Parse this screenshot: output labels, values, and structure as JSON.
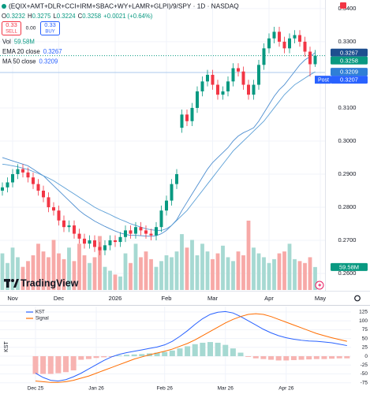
{
  "header": {
    "title": "(EQIX+AMT+DLR+CCI+IRM+SBAC+WY+LAMR+GLPI)/9/SPY · 1D · NASDAQ",
    "open_label": "O",
    "high_label": "H",
    "low_label": "L",
    "close_label": "C",
    "change": "+0.0021",
    "change_percent": "(+0.64%)",
    "sell_price": "0.33",
    "sell": "SELL",
    "spread": "0.00",
    "buy_price": "0.33",
    "buy": "BUY",
    "logo": "TradingView"
  },
  "chart_data": [
    {
      "type": "candlestick",
      "ylim": [
        0.255,
        0.3426
      ],
      "yticks": [
        {
          "value": 0.34,
          "label": "0.3400"
        },
        {
          "value": 0.33,
          "label": "0.3300"
        },
        {
          "value": 0.31,
          "label": "0.3100"
        },
        {
          "value": 0.3,
          "label": "0.3000"
        },
        {
          "value": 0.29,
          "label": "0.2900"
        },
        {
          "value": 0.28,
          "label": "0.2800"
        },
        {
          "value": 0.27,
          "label": "0.2700"
        },
        {
          "value": 0.26,
          "label": "0.2600"
        }
      ],
      "xticks": [
        {
          "value": 2,
          "label": "Nov"
        },
        {
          "value": 11,
          "label": "Dec"
        },
        {
          "value": 22,
          "label": "2026"
        },
        {
          "value": 32,
          "label": "Feb"
        },
        {
          "value": 41,
          "label": "Mar"
        },
        {
          "value": 52,
          "label": "Apr"
        },
        {
          "value": 62,
          "label": "May"
        }
      ],
      "grid": true,
      "up_color": "#089981",
      "down_color": "#f23645",
      "open": [
        0.285,
        0.286,
        0.2875,
        0.29,
        0.2915,
        0.2905,
        0.289,
        0.287,
        0.285,
        0.283,
        0.28,
        0.279,
        0.276,
        0.274,
        0.2745,
        0.272,
        0.2705,
        0.269,
        0.27,
        0.268,
        0.267,
        0.2685,
        0.27,
        0.2695,
        0.271,
        0.273,
        0.272,
        0.274,
        0.273,
        0.272,
        0.2715,
        0.274,
        0.279,
        0.282,
        0.287,
        0.304,
        0.308,
        0.306,
        0.31,
        0.315,
        0.318,
        0.32,
        0.317,
        0.314,
        0.315,
        0.318,
        0.322,
        0.321,
        0.317,
        0.314,
        0.317,
        0.323,
        0.328,
        0.331,
        0.333,
        0.33,
        0.328,
        0.331,
        0.332,
        0.33,
        0.327,
        0.3232
      ],
      "high": [
        0.2875,
        0.289,
        0.2915,
        0.293,
        0.293,
        0.292,
        0.2905,
        0.2885,
        0.2865,
        0.2845,
        0.2815,
        0.2805,
        0.2775,
        0.276,
        0.276,
        0.2735,
        0.272,
        0.2715,
        0.2715,
        0.2695,
        0.27,
        0.2715,
        0.2715,
        0.2725,
        0.2745,
        0.2745,
        0.2755,
        0.2755,
        0.2745,
        0.2735,
        0.2755,
        0.2805,
        0.2835,
        0.2885,
        0.2915,
        0.3095,
        0.3095,
        0.3115,
        0.3165,
        0.3195,
        0.3215,
        0.3215,
        0.3185,
        0.3165,
        0.3195,
        0.3235,
        0.3235,
        0.3225,
        0.3185,
        0.3185,
        0.3245,
        0.3295,
        0.3325,
        0.3345,
        0.3345,
        0.3315,
        0.3325,
        0.3335,
        0.3335,
        0.3315,
        0.3285,
        0.3275
      ],
      "low": [
        0.2835,
        0.2845,
        0.286,
        0.2885,
        0.289,
        0.2875,
        0.2855,
        0.2835,
        0.2815,
        0.2785,
        0.2775,
        0.2745,
        0.2725,
        0.2725,
        0.2705,
        0.269,
        0.2675,
        0.2675,
        0.2665,
        0.2655,
        0.2655,
        0.267,
        0.268,
        0.268,
        0.2695,
        0.2705,
        0.2705,
        0.2715,
        0.2705,
        0.27,
        0.27,
        0.2725,
        0.2775,
        0.2805,
        0.2855,
        0.3025,
        0.3045,
        0.3045,
        0.3085,
        0.3135,
        0.3165,
        0.3155,
        0.3125,
        0.3125,
        0.3135,
        0.3165,
        0.3195,
        0.3155,
        0.3125,
        0.3125,
        0.3155,
        0.3215,
        0.3265,
        0.3295,
        0.3285,
        0.3265,
        0.3265,
        0.3295,
        0.3285,
        0.3255,
        0.3195,
        0.3224
      ],
      "close": [
        0.286,
        0.2875,
        0.29,
        0.2915,
        0.2905,
        0.289,
        0.287,
        0.285,
        0.283,
        0.28,
        0.279,
        0.276,
        0.274,
        0.2745,
        0.272,
        0.2705,
        0.269,
        0.27,
        0.268,
        0.267,
        0.2685,
        0.27,
        0.2695,
        0.271,
        0.273,
        0.272,
        0.274,
        0.273,
        0.272,
        0.2715,
        0.274,
        0.279,
        0.282,
        0.287,
        0.29,
        0.308,
        0.306,
        0.31,
        0.315,
        0.318,
        0.32,
        0.317,
        0.314,
        0.315,
        0.318,
        0.322,
        0.321,
        0.317,
        0.314,
        0.317,
        0.323,
        0.328,
        0.331,
        0.333,
        0.33,
        0.328,
        0.331,
        0.332,
        0.33,
        0.327,
        0.3232,
        0.3258
      ],
      "volume": {
        "name": "Vol",
        "last_label": "59.58M",
        "up_color": "#a6d9d2",
        "down_color": "#f7a9a7",
        "values": [
          95,
          70,
          110,
          85,
          60,
          75,
          90,
          120,
          100,
          85,
          130,
          95,
          80,
          110,
          75,
          120,
          90,
          70,
          85,
          140,
          60,
          50,
          40,
          35,
          95,
          70,
          120,
          85,
          100,
          80,
          60,
          75,
          90,
          85,
          100,
          145,
          110,
          130,
          90,
          120,
          100,
          80,
          95,
          115,
          85,
          75,
          100,
          90,
          180,
          110,
          95,
          85,
          70,
          80,
          95,
          100,
          120,
          80,
          75,
          70,
          85,
          59.58
        ]
      },
      "ema": {
        "name": "EMA 20 close",
        "color": "#4f8fd0",
        "values": [
          0.295,
          0.2945,
          0.294,
          0.2935,
          0.293,
          0.2925,
          0.2915,
          0.2905,
          0.2895,
          0.288,
          0.2865,
          0.285,
          0.2835,
          0.282,
          0.2805,
          0.279,
          0.2778,
          0.2768,
          0.2758,
          0.275,
          0.2742,
          0.2735,
          0.2728,
          0.2722,
          0.2718,
          0.2715,
          0.2715,
          0.2714,
          0.2713,
          0.2712,
          0.2714,
          0.272,
          0.273,
          0.2745,
          0.2762,
          0.279,
          0.2815,
          0.284,
          0.2865,
          0.289,
          0.2915,
          0.2935,
          0.295,
          0.2965,
          0.298,
          0.3,
          0.3015,
          0.3025,
          0.3032,
          0.304,
          0.306,
          0.3085,
          0.311,
          0.3135,
          0.3155,
          0.317,
          0.319,
          0.321,
          0.323,
          0.3245,
          0.3255,
          0.3267
        ]
      },
      "ma": {
        "name": "MA 50 close",
        "color": "#5b9fd6",
        "values": [
          0.293,
          0.2928,
          0.2925,
          0.2922,
          0.2918,
          0.2914,
          0.2908,
          0.2902,
          0.2895,
          0.2888,
          0.288,
          0.287,
          0.286,
          0.285,
          0.284,
          0.283,
          0.282,
          0.281,
          0.28,
          0.2792,
          0.2785,
          0.2778,
          0.277,
          0.2763,
          0.2757,
          0.275,
          0.2745,
          0.274,
          0.2735,
          0.2732,
          0.273,
          0.273,
          0.2735,
          0.2745,
          0.276,
          0.2775,
          0.279,
          0.281,
          0.283,
          0.285,
          0.287,
          0.289,
          0.291,
          0.293,
          0.295,
          0.297,
          0.2985,
          0.3,
          0.3015,
          0.303,
          0.3045,
          0.306,
          0.308,
          0.31,
          0.312,
          0.314,
          0.3155,
          0.317,
          0.318,
          0.319,
          0.32,
          0.3209
        ]
      },
      "post_market": {
        "label": "Post",
        "value": 0.3207
      }
    },
    {
      "type": "line",
      "y_label": "KST",
      "ylim": [
        -100,
        138
      ],
      "yticks": [
        125,
        100,
        75,
        50,
        25,
        0,
        -25,
        -50,
        -75
      ],
      "xticks": [
        {
          "value": 0,
          "label": "Dec 25"
        },
        {
          "value": 8,
          "label": "Jan 26"
        },
        {
          "value": 17,
          "label": "Feb 26"
        },
        {
          "value": 25,
          "label": "Mar 26"
        },
        {
          "value": 33,
          "label": "Apr 26"
        }
      ],
      "series": [
        {
          "name": "KST",
          "color": "#2962ff",
          "values": [
            -48,
            -60,
            -68,
            -70,
            -66,
            -58,
            -48,
            -36,
            -24,
            -12,
            -2,
            5,
            10,
            14,
            18,
            22,
            26,
            32,
            42,
            56,
            72,
            90,
            106,
            118,
            124,
            126,
            122,
            112,
            100,
            88,
            76,
            66,
            58,
            52,
            48,
            45,
            43,
            42,
            40,
            38,
            34,
            30
          ]
        },
        {
          "name": "Signal",
          "color": "#ff6d00",
          "values": [
            -70,
            -72,
            -74,
            -74,
            -72,
            -68,
            -62,
            -56,
            -48,
            -40,
            -32,
            -24,
            -16,
            -8,
            -2,
            4,
            9,
            14,
            20,
            28,
            36,
            46,
            58,
            70,
            82,
            94,
            104,
            112,
            118,
            120,
            118,
            112,
            104,
            96,
            88,
            80,
            72,
            64,
            58,
            52,
            47,
            42
          ]
        }
      ],
      "histogram": {
        "positive_color": "#a6d9d2",
        "negative_color": "#f7b3b1",
        "values": [
          -50,
          -50,
          -50,
          -48,
          -45,
          -40,
          -10,
          -8,
          -5,
          -3,
          -2,
          2,
          4,
          5,
          6,
          8,
          10,
          12,
          16,
          22,
          28,
          34,
          38,
          40,
          38,
          32,
          22,
          10,
          -2,
          -6,
          -8,
          -10,
          -12,
          -12,
          -11,
          -10,
          -9,
          -8,
          -8,
          -7,
          -6,
          -6
        ]
      }
    }
  ]
}
